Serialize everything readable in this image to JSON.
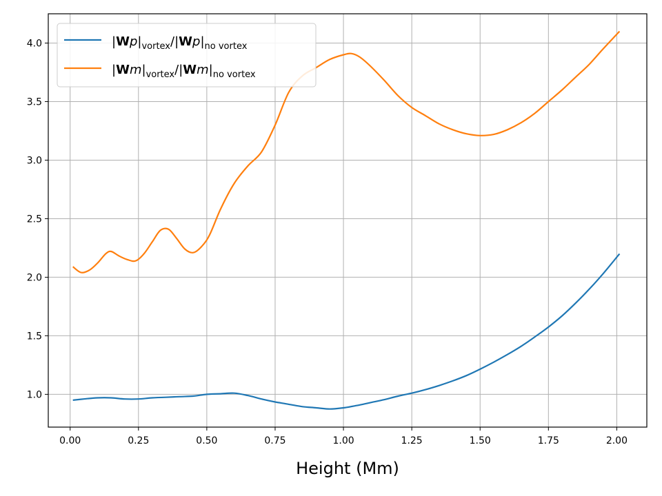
{
  "chart_data": {
    "type": "line",
    "xlabel": "Height (Mm)",
    "ylabel": "",
    "xlim": [
      -0.08,
      2.11
    ],
    "ylim": [
      0.72,
      4.25
    ],
    "grid": true,
    "legend_placement": "top-left",
    "x_ticks": [
      "0.00",
      "0.25",
      "0.50",
      "0.75",
      "1.00",
      "1.25",
      "1.50",
      "1.75",
      "2.00"
    ],
    "y_ticks": [
      "1.0",
      "1.5",
      "2.0",
      "2.5",
      "3.0",
      "3.5",
      "4.0"
    ],
    "series": [
      {
        "name": "|Wp|vortex/|Wp|no vortex",
        "legend": {
          "bold": "W",
          "italic": "p",
          "sub1": "vortex",
          "sub2": "no vortex"
        },
        "color": "#1f77b4",
        "x": [
          0.01,
          0.05,
          0.1,
          0.15,
          0.2,
          0.25,
          0.3,
          0.35,
          0.4,
          0.45,
          0.5,
          0.55,
          0.6,
          0.65,
          0.7,
          0.75,
          0.8,
          0.85,
          0.9,
          0.95,
          1.0,
          1.05,
          1.1,
          1.15,
          1.2,
          1.25,
          1.3,
          1.35,
          1.4,
          1.45,
          1.5,
          1.55,
          1.6,
          1.65,
          1.7,
          1.75,
          1.8,
          1.85,
          1.9,
          1.95,
          2.01
        ],
        "y": [
          0.95,
          0.96,
          0.97,
          0.97,
          0.96,
          0.96,
          0.97,
          0.975,
          0.98,
          0.985,
          1.0,
          1.005,
          1.01,
          0.99,
          0.96,
          0.935,
          0.915,
          0.895,
          0.885,
          0.875,
          0.885,
          0.905,
          0.93,
          0.955,
          0.985,
          1.01,
          1.04,
          1.075,
          1.115,
          1.16,
          1.215,
          1.275,
          1.34,
          1.41,
          1.49,
          1.575,
          1.67,
          1.78,
          1.9,
          2.03,
          2.2
        ]
      },
      {
        "name": "|Wm|vortex/|Wm|no vortex",
        "legend": {
          "bold": "W",
          "italic": "m",
          "sub1": "vortex",
          "sub2": "no vortex"
        },
        "color": "#ff7f0e",
        "x": [
          0.01,
          0.04,
          0.07,
          0.1,
          0.13,
          0.15,
          0.18,
          0.21,
          0.24,
          0.27,
          0.3,
          0.33,
          0.36,
          0.39,
          0.42,
          0.45,
          0.48,
          0.51,
          0.55,
          0.6,
          0.65,
          0.7,
          0.75,
          0.8,
          0.85,
          0.9,
          0.95,
          1.0,
          1.03,
          1.06,
          1.1,
          1.15,
          1.2,
          1.25,
          1.3,
          1.35,
          1.4,
          1.45,
          1.5,
          1.55,
          1.6,
          1.65,
          1.7,
          1.75,
          1.8,
          1.85,
          1.9,
          1.95,
          2.01
        ],
        "y": [
          2.09,
          2.04,
          2.06,
          2.12,
          2.2,
          2.22,
          2.18,
          2.15,
          2.14,
          2.2,
          2.3,
          2.4,
          2.41,
          2.33,
          2.24,
          2.21,
          2.26,
          2.36,
          2.58,
          2.8,
          2.95,
          3.07,
          3.3,
          3.58,
          3.72,
          3.79,
          3.86,
          3.9,
          3.91,
          3.88,
          3.8,
          3.68,
          3.55,
          3.45,
          3.38,
          3.31,
          3.26,
          3.225,
          3.21,
          3.22,
          3.26,
          3.32,
          3.4,
          3.5,
          3.6,
          3.71,
          3.82,
          3.95,
          4.1
        ]
      }
    ]
  }
}
